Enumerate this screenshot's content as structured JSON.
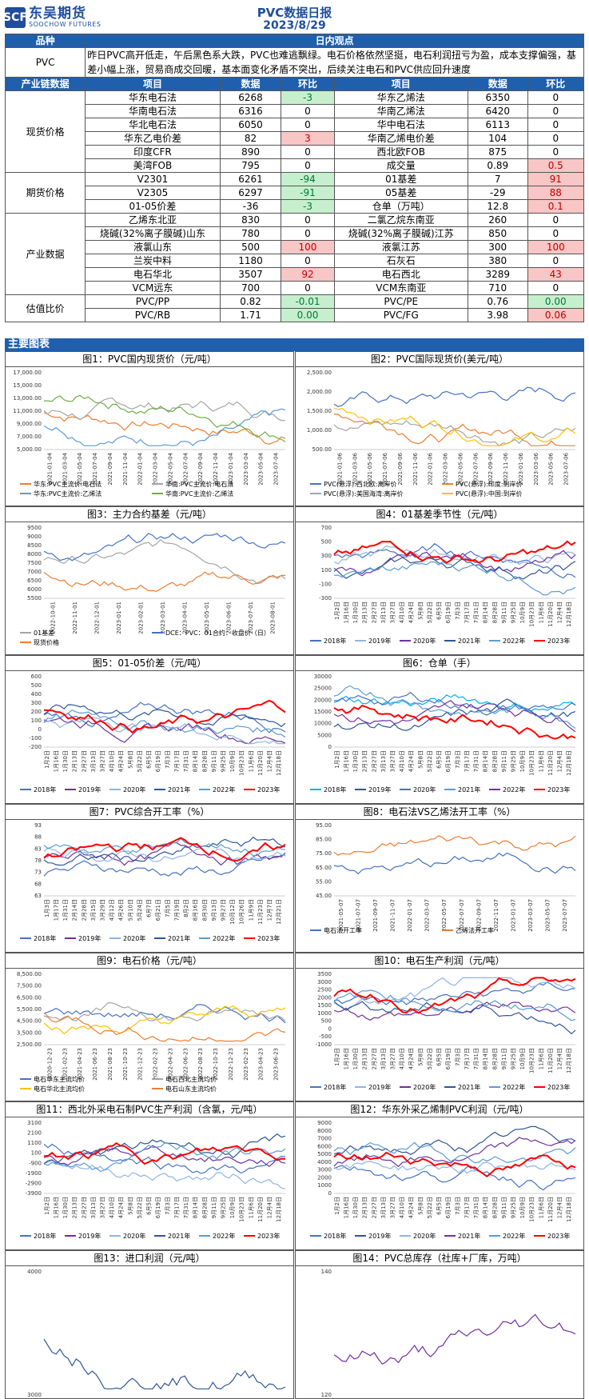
{
  "header": {
    "logo_cn": "东吴期货",
    "logo_en": "SOOCHOW FUTURES",
    "logo_mark": "SCF",
    "title": "PVC数据日报",
    "date": "2023/8/29"
  },
  "table": {
    "col_variety": "品种",
    "col_view": "日内观点",
    "pvc_label": "PVC",
    "opinion": "昨日PVC高开低走，午后黑色系大跌，PVC也难逃飘绿。电石价格依然坚挺，电石利润扭亏为盈，成本支撑偏强，基差小幅上涨，贸易商成交回暖，基本面变化矛盾不突出，后续关注电石和PVC供应回升速度",
    "col_chain": "产业链数据",
    "col_item": "项目",
    "col_data": "数据",
    "col_change": "环比",
    "groups": [
      {
        "name": "现货价格",
        "rows": [
          {
            "a": "华东电石法",
            "av": "6268",
            "ac": "-3",
            "acs": "green",
            "b": "华东乙烯法",
            "bv": "6350",
            "bc": "0",
            "bcs": ""
          },
          {
            "a": "华南电石法",
            "av": "6316",
            "ac": "0",
            "acs": "",
            "b": "华南乙烯法",
            "bv": "6420",
            "bc": "0",
            "bcs": ""
          },
          {
            "a": "华北电石法",
            "av": "6050",
            "ac": "0",
            "acs": "",
            "b": "华中电石法",
            "bv": "6113",
            "bc": "0",
            "bcs": ""
          },
          {
            "a": "华东乙电价差",
            "av": "82",
            "ac": "3",
            "acs": "red",
            "b": "华南乙烯电价差",
            "bv": "104",
            "bc": "0",
            "bcs": ""
          },
          {
            "a": "印度CFR",
            "av": "890",
            "ac": "0",
            "acs": "",
            "b": "西北欧FOB",
            "bv": "875",
            "bc": "0",
            "bcs": ""
          },
          {
            "a": "美湾FOB",
            "av": "795",
            "ac": "0",
            "acs": "",
            "b": "成交量",
            "bv": "0.89",
            "bc": "0.5",
            "bcs": "red"
          }
        ]
      },
      {
        "name": "期货价格",
        "rows": [
          {
            "a": "V2301",
            "av": "6261",
            "ac": "-94",
            "acs": "green",
            "b": "01基差",
            "bv": "7",
            "bc": "91",
            "bcs": "red"
          },
          {
            "a": "V2305",
            "av": "6297",
            "ac": "-91",
            "acs": "green",
            "b": "05基差",
            "bv": "-29",
            "bc": "88",
            "bcs": "red"
          },
          {
            "a": "01-05价差",
            "av": "-36",
            "ac": "-3",
            "acs": "green",
            "b": "仓单（万吨）",
            "bv": "12.8",
            "bc": "0.1",
            "bcs": "red"
          }
        ]
      },
      {
        "name": "产业数据",
        "rows": [
          {
            "a": "乙烯东北亚",
            "av": "830",
            "ac": "0",
            "acs": "",
            "b": "二氯乙烷东南亚",
            "bv": "260",
            "bc": "0",
            "bcs": ""
          },
          {
            "a": "烧碱(32%离子膜碱)山东",
            "av": "780",
            "ac": "0",
            "acs": "",
            "b": "烧碱(32%离子膜碱)江苏",
            "bv": "850",
            "bc": "0",
            "bcs": ""
          },
          {
            "a": "液氯山东",
            "av": "500",
            "ac": "100",
            "acs": "red",
            "b": "液氯江苏",
            "bv": "300",
            "bc": "100",
            "bcs": "red"
          },
          {
            "a": "兰炭中料",
            "av": "1180",
            "ac": "0",
            "acs": "",
            "b": "石灰石",
            "bv": "380",
            "bc": "0",
            "bcs": ""
          },
          {
            "a": "电石华北",
            "av": "3507",
            "ac": "92",
            "acs": "red",
            "b": "电石西北",
            "bv": "3289",
            "bc": "43",
            "bcs": "red"
          },
          {
            "a": "VCM远东",
            "av": "700",
            "ac": "0",
            "acs": "",
            "b": "VCM东南亚",
            "bv": "710",
            "bc": "0",
            "bcs": ""
          }
        ]
      },
      {
        "name": "估值比价",
        "rows": [
          {
            "a": "PVC/PP",
            "av": "0.82",
            "ac": "-0.01",
            "acs": "green",
            "b": "PVC/PE",
            "bv": "0.76",
            "bc": "0.00",
            "bcs": "green"
          },
          {
            "a": "PVC/RB",
            "av": "1.71",
            "ac": "0.00",
            "acs": "green",
            "b": "PVC/FG",
            "bv": "3.98",
            "bc": "0.06",
            "bcs": "red"
          }
        ]
      }
    ]
  },
  "section_title": "主要图表",
  "charts": [
    {
      "caption": "图1：PVC国内现货价（元/吨）",
      "yticks": [
        "17,000.00",
        "15,000.00",
        "13,000.00",
        "11,000.00",
        "9,000.00",
        "7,000.00",
        "5,000.00"
      ],
      "xticks": [
        "2021-01-04",
        "2021-03-04",
        "2021-05-04",
        "2021-07-04",
        "2021-09-04",
        "2021-11-04",
        "2022-01-04",
        "2022-03-04",
        "2022-05-04",
        "2022-07-04",
        "2022-09-04",
        "2022-11-04",
        "2023-01-04",
        "2023-03-04",
        "2023-05-04",
        "2023-07-04"
      ],
      "legend": [
        "华东:PVC主流价:电石法",
        "华南:PVC主流价:电石法",
        "华东:PVC主流价:乙烯法",
        "华南:PVC主流价:乙烯法"
      ],
      "colors": [
        "#ed7d31",
        "#a5a5a5",
        "#5b9bd5",
        "#70ad47"
      ]
    },
    {
      "caption": "图2：PVC国际现货价(美元/吨）",
      "yticks": [
        "2,500.00",
        "2,000.00",
        "1,500.00",
        "1,000.00",
        "500.00"
      ],
      "xticks": [
        "2021-01-06",
        "2021-03-06",
        "2021-05-06",
        "2021-07-06",
        "2021-09-06",
        "2021-11-06",
        "2022-01-06",
        "2022-03-06",
        "2022-05-06",
        "2022-07-06",
        "2022-09-06",
        "2022-11-06",
        "2023-01-06",
        "2023-03-06",
        "2023-05-06",
        "2023-07-06"
      ],
      "legend": [
        "PVC(悬浮):西北欧:离岸价",
        "PVC(悬浮):印度:到岸价",
        "PVC(悬浮):美国海湾:离岸价",
        "PVC(悬浮):中国:到岸价"
      ],
      "colors": [
        "#4472c4",
        "#ed7d31",
        "#a5a5a5",
        "#ffc000"
      ]
    },
    {
      "caption": "图3：主力合约基差（元/吨）",
      "yticks": [
        "9500",
        "9000",
        "8500",
        "8000",
        "7500",
        "7000",
        "6500",
        "6000",
        "5500"
      ],
      "xticks": [
        "2022-10-01",
        "2022-11-01",
        "2022-12-01",
        "2023-01-01",
        "2023-02-01",
        "2023-03-01",
        "2023-04-01",
        "2023-05-01",
        "2023-06-01",
        "2023-07-01",
        "2023-08-01"
      ],
      "legend": [
        "01基差",
        "DCE：PVC：01合约：收盘价（日）",
        "现货价格"
      ],
      "colors": [
        "#a5a5a5",
        "#4472c4",
        "#ed7d31"
      ]
    },
    {
      "caption": "图4：01基差季节性（元/吨）",
      "yticks": [
        "700",
        "500",
        "300",
        "100",
        "-100",
        "-300"
      ],
      "xticks": [
        "1月2日",
        "1月16日",
        "1月30日",
        "2月13日",
        "2月27日",
        "3月13日",
        "3月27日",
        "4月10日",
        "4月24日",
        "5月8日",
        "5月22日",
        "6月5日",
        "6月19日",
        "7月3日",
        "7月17日",
        "7月31日",
        "8月14日",
        "8月28日",
        "9月11日",
        "9月25日",
        "10月9日",
        "10月23日",
        "11月6日",
        "11月20日",
        "12月4日",
        "12月18日"
      ],
      "legend": [
        "2018年",
        "2019年",
        "2020年",
        "2021年",
        "2022年",
        "2023年"
      ],
      "colors": [
        "#4472c4",
        "#8fb4e3",
        "#7030a0",
        "#2f5597",
        "#5b9bd5",
        "#ff0000"
      ]
    },
    {
      "caption": "图5：01-05价差（元/吨）",
      "yticks": [
        "600",
        "500",
        "400",
        "300",
        "200",
        "100",
        "0",
        "-100",
        "-200"
      ],
      "xticks": [
        "1月2日",
        "1月16日",
        "1月30日",
        "2月13日",
        "2月27日",
        "3月13日",
        "3月27日",
        "4月10日",
        "4月24日",
        "5月8日",
        "5月22日",
        "6月5日",
        "6月19日",
        "7月3日",
        "7月17日",
        "7月31日",
        "8月14日",
        "8月28日",
        "9月11日",
        "9月25日",
        "10月9日",
        "10月23日",
        "11月6日",
        "11月20日",
        "12月4日",
        "12月18日"
      ],
      "legend": [
        "2018年",
        "2019年",
        "2020年",
        "2021年",
        "2022年",
        "2023年"
      ],
      "colors": [
        "#4472c4",
        "#7030a0",
        "#8fb4e3",
        "#2f5597",
        "#5b9bd5",
        "#ff0000"
      ]
    },
    {
      "caption": "图6：仓单（手）",
      "yticks": [
        "30000",
        "25000",
        "20000",
        "15000",
        "10000",
        "5000",
        "0"
      ],
      "xticks": [
        "1月2日",
        "1月16日",
        "1月30日",
        "2月13日",
        "2月27日",
        "3月13日",
        "3月27日",
        "4月10日",
        "4月24日",
        "5月8日",
        "5月22日",
        "6月5日",
        "6月19日",
        "7月3日",
        "7月17日",
        "7月31日",
        "8月14日",
        "8月28日",
        "9月11日",
        "9月25日",
        "10月9日",
        "10月23日",
        "11月6日",
        "11月20日",
        "12月4日",
        "12月18日"
      ],
      "legend": [
        "2018年",
        "2019年",
        "2020年",
        "2021年",
        "2022年",
        "2023年"
      ],
      "colors": [
        "#00b0f0",
        "#2f5597",
        "#4472c4",
        "#5b9bd5",
        "#7030a0",
        "#ff0000"
      ]
    },
    {
      "caption": "图7：PVC综合开工率（%）",
      "yticks": [
        "93",
        "88",
        "83",
        "78",
        "73",
        "68",
        "63"
      ],
      "xticks": [
        "1月3日",
        "1月17日",
        "1月31日",
        "2月14日",
        "2月28日",
        "3月15日",
        "3月29日",
        "4月12日",
        "4月26日",
        "5月10日",
        "5月24日",
        "6月7日",
        "6月21日",
        "7月5日",
        "7月19日",
        "8月2日",
        "8月16日",
        "8月30日",
        "9月13日",
        "9月27日",
        "10月12日",
        "10月26日",
        "11月9日",
        "11月23日",
        "12月7日",
        "12月21日"
      ],
      "legend": [
        "2018年",
        "2019年",
        "2020年",
        "2021年",
        "2022年",
        "2023年"
      ],
      "colors": [
        "#4472c4",
        "#7030a0",
        "#8fb4e3",
        "#2f5597",
        "#5b9bd5",
        "#ff0000"
      ]
    },
    {
      "caption": "图8：电石法VS乙烯法开工率（%）",
      "yticks": [
        "95.00",
        "85.00",
        "75.00",
        "65.00",
        "55.00",
        "45.00"
      ],
      "xticks": [
        "2021-05-07",
        "2021-07-07",
        "2021-09-07",
        "2021-11-07",
        "2022-01-07",
        "2022-03-07",
        "2022-05-07",
        "2022-07-07",
        "2022-09-07",
        "2022-11-07",
        "2023-01-07",
        "2023-03-07",
        "2023-05-07",
        "2023-07-07"
      ],
      "legend": [
        "电石法开工率",
        "乙烯法开工率"
      ],
      "colors": [
        "#4472c4",
        "#ed7d31"
      ]
    },
    {
      "caption": "图9：电石价格（元/吨）",
      "yticks": [
        "8,500.00",
        "7,500.00",
        "6,500.00",
        "5,500.00",
        "4,500.00",
        "3,500.00",
        "2,500.00"
      ],
      "xticks": [
        "2020-12-23",
        "2021-02-23",
        "2021-04-23",
        "2021-06-23",
        "2021-08-23",
        "2021-10-23",
        "2021-12-23",
        "2022-02-23",
        "2022-04-23",
        "2022-06-23",
        "2022-08-23",
        "2022-10-23",
        "2022-12-23",
        "2023-02-23",
        "2023-04-23",
        "2023-06-23"
      ],
      "legend": [
        "电石华东主流均价",
        "电石西北主流均价",
        "电石华北主流均价",
        "电石山东主流均价"
      ],
      "colors": [
        "#4472c4",
        "#a5a5a5",
        "#ffc000",
        "#ed7d31"
      ]
    },
    {
      "caption": "图10：电石生产利润（元/吨）",
      "yticks": [
        "3500",
        "3000",
        "2500",
        "2000",
        "1500",
        "1000",
        "500",
        "0",
        "-500",
        "-1000"
      ],
      "xticks": [
        "1月2日",
        "1月16日",
        "1月30日",
        "2月13日",
        "2月27日",
        "3月13日",
        "3月27日",
        "4月10日",
        "4月24日",
        "5月8日",
        "5月22日",
        "6月5日",
        "6月19日",
        "7月3日",
        "7月17日",
        "7月31日",
        "8月14日",
        "8月28日",
        "9月11日",
        "9月25日",
        "10月9日",
        "10月23日",
        "11月6日",
        "11月20日",
        "12月4日",
        "12月18日"
      ],
      "legend": [
        "2018年",
        "2019年",
        "2020年",
        "2021年",
        "2022年",
        "2023年"
      ],
      "colors": [
        "#4472c4",
        "#8fb4e3",
        "#7030a0",
        "#2f5597",
        "#5b9bd5",
        "#ff0000"
      ]
    },
    {
      "caption": "图11：西北外采电石制PVC生产利润（含氯，元/吨）",
      "yticks": [
        "3100",
        "2100",
        "1100",
        "100",
        "-900",
        "-1900",
        "-2900",
        "-3900"
      ],
      "xticks": [
        "1月2日",
        "1月16日",
        "1月30日",
        "2月13日",
        "2月27日",
        "3月13日",
        "3月27日",
        "4月10日",
        "4月24日",
        "5月8日",
        "5月22日",
        "6月5日",
        "6月19日",
        "7月3日",
        "7月17日",
        "7月31日",
        "8月14日",
        "8月28日",
        "9月11日",
        "9月25日",
        "10月9日",
        "10月23日",
        "11月6日",
        "11月20日",
        "12月4日",
        "12月18日"
      ],
      "legend": [
        "2018年",
        "2019年",
        "2020年",
        "2021年",
        "2022年",
        "2023年"
      ],
      "colors": [
        "#4472c4",
        "#7030a0",
        "#8fb4e3",
        "#2f5597",
        "#5b9bd5",
        "#ff0000"
      ]
    },
    {
      "caption": "图12：华东外采乙烯制PVC利润（元/吨）",
      "yticks": [
        "9000",
        "8000",
        "7000",
        "6000",
        "5000",
        "4000",
        "3000",
        "2000",
        "1000",
        "0"
      ],
      "xticks": [
        "1月2日",
        "1月16日",
        "1月30日",
        "2月13日",
        "2月27日",
        "3月13日",
        "3月27日",
        "4月10日",
        "4月24日",
        "5月8日",
        "5月22日",
        "6月5日",
        "6月19日",
        "7月3日",
        "7月17日",
        "7月31日",
        "8月14日",
        "8月28日",
        "9月11日",
        "9月25日",
        "10月9日",
        "10月23日",
        "11月6日",
        "11月20日",
        "12月4日",
        "12月18日"
      ],
      "legend": [
        "2018年",
        "2019年",
        "2020年",
        "2021年",
        "2022年",
        "2023年"
      ],
      "colors": [
        "#4472c4",
        "#2f5597",
        "#8fb4e3",
        "#7030a0",
        "#5b9bd5",
        "#ff0000"
      ]
    },
    {
      "caption": "图13：进口利润（元/吨）",
      "yticks": [
        "4000",
        "3000"
      ],
      "xticks": [],
      "legend": [],
      "colors": [
        "#2f5597"
      ]
    },
    {
      "caption": "图14：PVC总库存（社库+厂库，万吨）",
      "yticks": [
        "140",
        "120"
      ],
      "xticks": [],
      "legend": [],
      "colors": [
        "#7030a0"
      ]
    }
  ]
}
